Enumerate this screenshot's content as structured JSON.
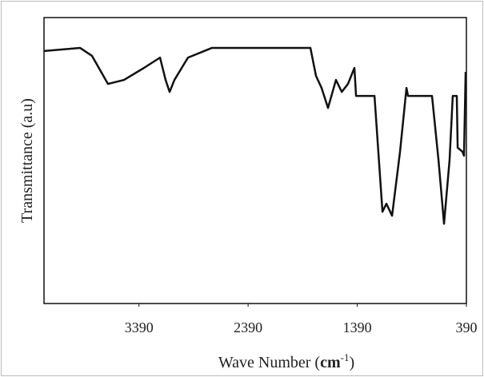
{
  "chart_data": {
    "type": "line",
    "ylabel": "Transmittance (a.u)",
    "xlabel_parts": [
      "Wave Number (",
      "cm",
      "-1",
      ")"
    ],
    "x": [
      4260,
      3930,
      3820,
      3674,
      3527,
      3344,
      3197,
      3146,
      3109,
      3065,
      2941,
      2721,
      1819,
      1768,
      1717,
      1658,
      1585,
      1532,
      1475,
      1416,
      1401,
      1232,
      1159,
      1123,
      1071,
      998,
      939,
      925,
      705,
      646,
      595,
      544,
      515,
      478,
      470,
      426,
      412,
      397
    ],
    "series": [
      {
        "name": "Transmittance",
        "color": "#111111",
        "values": [
          88.3,
          89.4,
          86.6,
          76.8,
          78.2,
          82.4,
          86.0,
          78.2,
          74.0,
          78.2,
          86.0,
          89.4,
          89.4,
          79.6,
          75.4,
          68.4,
          78.2,
          74.0,
          76.8,
          82.4,
          72.6,
          72.6,
          32.1,
          34.9,
          30.7,
          53.1,
          75.4,
          72.6,
          72.6,
          50.3,
          27.9,
          50.3,
          72.6,
          72.6,
          54.5,
          53.1,
          51.7,
          81.0
        ]
      }
    ],
    "xlim": [
      4260,
      390
    ],
    "xticks": [
      3390,
      2390,
      1390,
      390
    ],
    "ylim": [
      0,
      100
    ]
  }
}
